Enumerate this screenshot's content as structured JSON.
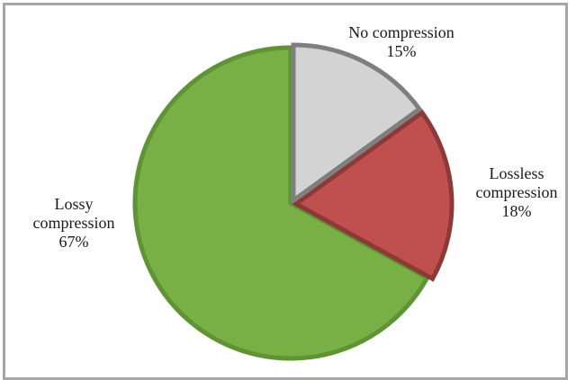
{
  "chart_data": {
    "type": "pie",
    "title": "",
    "slices": [
      {
        "label_lines": [
          "No compression"
        ],
        "value": 15,
        "value_text": "15%",
        "fill": "#d3d3d3",
        "stroke": "#7f7f7f"
      },
      {
        "label_lines": [
          "Lossless",
          "compression"
        ],
        "value": 18,
        "value_text": "18%",
        "fill": "#c0504d",
        "stroke": "#8c3a38"
      },
      {
        "label_lines": [
          "Lossy",
          "compression"
        ],
        "value": 67,
        "value_text": "67%",
        "fill": "#78b045",
        "stroke": "#5e9433"
      }
    ],
    "start_angle_deg": 0,
    "direction": "clockwise",
    "legend": "none",
    "labels": "outside"
  }
}
